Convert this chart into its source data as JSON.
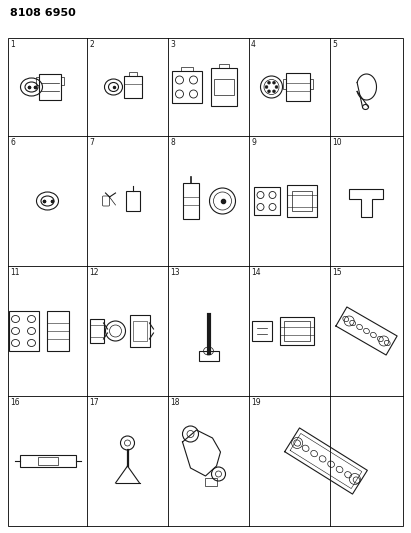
{
  "title": "8108 6950",
  "background_color": "#ffffff",
  "grid_color": "#000000",
  "text_color": "#000000",
  "figsize": [
    4.11,
    5.33
  ],
  "dpi": 100,
  "title_fontsize": 8,
  "title_fontweight": "bold",
  "lw_item": 0.8,
  "lw_grid": 0.6
}
